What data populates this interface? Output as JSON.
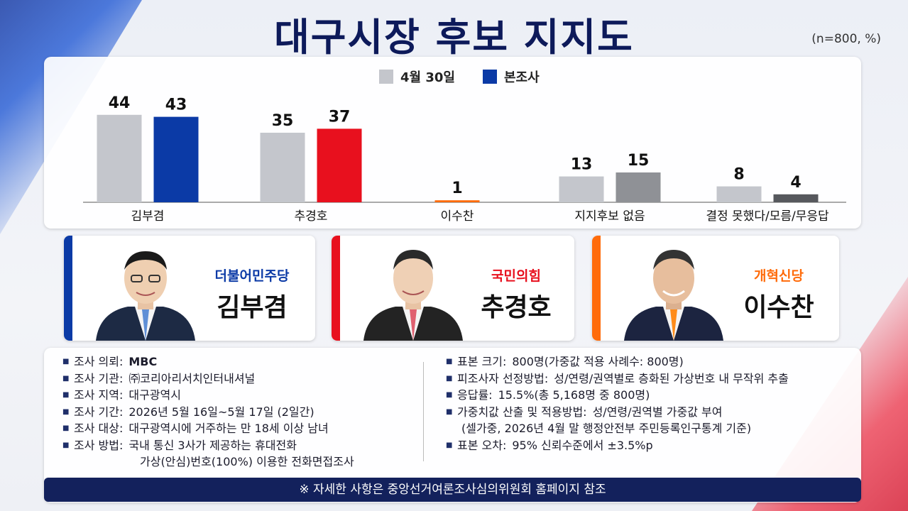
{
  "title": "대구시장 후보 지지도",
  "unit": "(n=800, %)",
  "colors": {
    "prior": "#c4c6cc",
    "kim": "#0b3aa6",
    "choo": "#e8101e",
    "lee": "#ff6b0a",
    "none": "#8f9196",
    "undecided": "#56585d",
    "navy": "#13215c"
  },
  "chart_data": {
    "type": "bar",
    "categories": [
      "김부겸",
      "추경호",
      "이수찬",
      "지지후보 없음",
      "결정 못했다/모름/무응답"
    ],
    "series": [
      {
        "name": "4월 30일",
        "values": [
          44,
          35,
          null,
          13,
          8
        ]
      },
      {
        "name": "본조사",
        "values": [
          43,
          37,
          1,
          15,
          4
        ]
      }
    ],
    "legend": [
      "4월 30일",
      "본조사"
    ],
    "legend_position": "top-center",
    "ylim": [
      0,
      50
    ],
    "grid": false
  },
  "candidates": [
    {
      "party": "더불어민주당",
      "name": "김부겸",
      "party_color": "#0b3aa6",
      "tie_color": "#5f8fd6"
    },
    {
      "party": "국민의힘",
      "name": "추경호",
      "party_color": "#e8101e",
      "tie_color": "#e06070"
    },
    {
      "party": "개혁신당",
      "name": "이수찬",
      "party_color": "#ff6b0a",
      "tie_color": "#ff8c1a"
    }
  ],
  "survey_left": [
    {
      "label": "조사 의뢰:",
      "value": "MBC"
    },
    {
      "label": "조사 기관:",
      "value": "㈜코리아리서치인터내셔널"
    },
    {
      "label": "조사 지역:",
      "value": "대구광역시"
    },
    {
      "label": "조사 기간:",
      "value": "2026년 5월 16일~5월 17일 (2일간)"
    },
    {
      "label": "조사 대상:",
      "value": "대구광역시에 거주하는 만 18세 이상 남녀"
    },
    {
      "label": "조사 방법:",
      "value": "국내 통신 3사가 제공하는 휴대전화",
      "value2": "가상(안심)번호(100%) 이용한 전화면접조사"
    }
  ],
  "survey_right": [
    {
      "label": "표본 크기:",
      "value": "800명(가중값 적용 사례수: 800명)"
    },
    {
      "label": "피조사자 선정방법:",
      "value": "성/연령/권역별로 층화된 가상번호 내 무작위 추출"
    },
    {
      "label": "응답률:",
      "value": "15.5%(총 5,168명 중 800명)"
    },
    {
      "label": "가중치값 산출 및 적용방법:",
      "value": "성/연령/권역별 가중값 부여",
      "value2": "(셀가중, 2026년 4월 말 행정안전부 주민등록인구통계 기준)"
    },
    {
      "label": "표본 오차:",
      "value": "95% 신뢰수준에서 ±3.5%p"
    }
  ],
  "footer": "※ 자세한 사항은 중앙선거여론조사심의위원회 홈페이지 참조"
}
